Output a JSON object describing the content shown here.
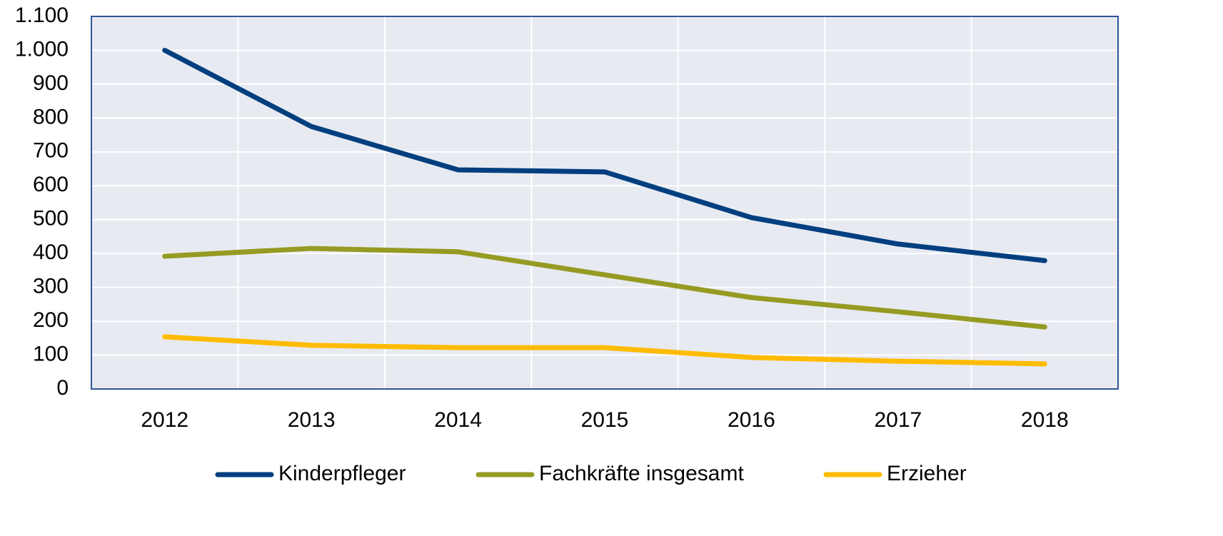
{
  "chart_data": {
    "type": "line",
    "categories": [
      "2012",
      "2013",
      "2014",
      "2015",
      "2016",
      "2017",
      "2018"
    ],
    "series": [
      {
        "name": "Kinderpfleger",
        "color": "#003f7f",
        "values": [
          1000,
          775,
          647,
          641,
          506,
          428,
          379
        ]
      },
      {
        "name": "Fachkräfte insgesamt",
        "color": "#959b22",
        "values": [
          392,
          415,
          405,
          337,
          270,
          228,
          183
        ]
      },
      {
        "name": "Erzieher",
        "color": "#ffbb00",
        "values": [
          154,
          129,
          122,
          122,
          93,
          82,
          74
        ]
      }
    ],
    "ylim": [
      0,
      1100
    ],
    "yticks": [
      0,
      100,
      200,
      300,
      400,
      500,
      600,
      700,
      800,
      900,
      {
        "value": 1000,
        "label": "1.000"
      },
      {
        "value": 1100,
        "label": "1.100"
      }
    ],
    "grid": true,
    "legend": "bottom"
  }
}
